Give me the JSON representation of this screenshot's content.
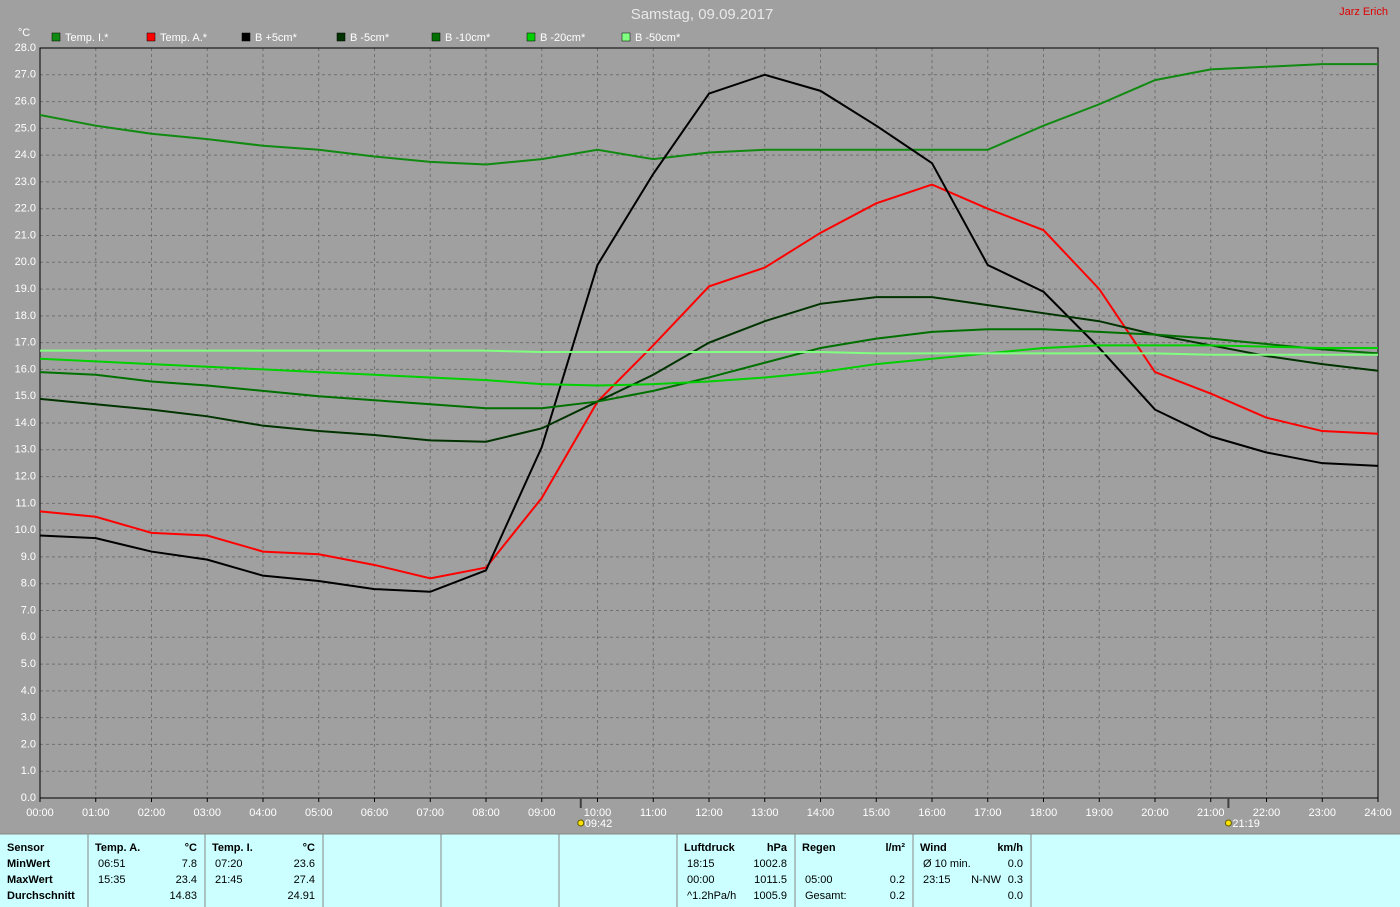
{
  "chart_data": {
    "type": "line",
    "title": "Samstag, 09.09.2017",
    "author": "Jarz Erich",
    "y_unit": "°C",
    "x": [
      0,
      1,
      2,
      3,
      4,
      5,
      6,
      7,
      8,
      9,
      10,
      11,
      12,
      13,
      14,
      15,
      16,
      17,
      18,
      19,
      20,
      21,
      22,
      23,
      24
    ],
    "xlim": [
      0,
      24
    ],
    "xticks": [
      {
        "value": 0,
        "label": "00:00"
      },
      {
        "value": 1,
        "label": "01:00"
      },
      {
        "value": 2,
        "label": "02:00"
      },
      {
        "value": 3,
        "label": "03:00"
      },
      {
        "value": 4,
        "label": "04:00"
      },
      {
        "value": 5,
        "label": "05:00"
      },
      {
        "value": 6,
        "label": "06:00"
      },
      {
        "value": 7,
        "label": "07:00"
      },
      {
        "value": 8,
        "label": "08:00"
      },
      {
        "value": 9,
        "label": "09:00"
      },
      {
        "value": 10,
        "label": "10:00"
      },
      {
        "value": 11,
        "label": "11:00"
      },
      {
        "value": 12,
        "label": "12:00"
      },
      {
        "value": 13,
        "label": "13:00"
      },
      {
        "value": 14,
        "label": "14:00"
      },
      {
        "value": 15,
        "label": "15:00"
      },
      {
        "value": 16,
        "label": "16:00"
      },
      {
        "value": 17,
        "label": "17:00"
      },
      {
        "value": 18,
        "label": "18:00"
      },
      {
        "value": 19,
        "label": "19:00"
      },
      {
        "value": 20,
        "label": "20:00"
      },
      {
        "value": 21,
        "label": "21:00"
      },
      {
        "value": 22,
        "label": "22:00"
      },
      {
        "value": 23,
        "label": "23:00"
      },
      {
        "value": 24,
        "label": "24:00"
      }
    ],
    "ylim": [
      0,
      28
    ],
    "yticks": [
      {
        "value": 0,
        "label": "0.0"
      },
      {
        "value": 1,
        "label": "1.0"
      },
      {
        "value": 2,
        "label": "2.0"
      },
      {
        "value": 3,
        "label": "3.0"
      },
      {
        "value": 4,
        "label": "4.0"
      },
      {
        "value": 5,
        "label": "5.0"
      },
      {
        "value": 6,
        "label": "6.0"
      },
      {
        "value": 7,
        "label": "7.0"
      },
      {
        "value": 8,
        "label": "8.0"
      },
      {
        "value": 9,
        "label": "9.0"
      },
      {
        "value": 10,
        "label": "10.0"
      },
      {
        "value": 11,
        "label": "11.0"
      },
      {
        "value": 12,
        "label": "12.0"
      },
      {
        "value": 13,
        "label": "13.0"
      },
      {
        "value": 14,
        "label": "14.0"
      },
      {
        "value": 15,
        "label": "15.0"
      },
      {
        "value": 16,
        "label": "16.0"
      },
      {
        "value": 17,
        "label": "17.0"
      },
      {
        "value": 18,
        "label": "18.0"
      },
      {
        "value": 19,
        "label": "19.0"
      },
      {
        "value": 20,
        "label": "20.0"
      },
      {
        "value": 21,
        "label": "21.0"
      },
      {
        "value": 22,
        "label": "22.0"
      },
      {
        "value": 23,
        "label": "23.0"
      },
      {
        "value": 24,
        "label": "24.0"
      },
      {
        "value": 25,
        "label": "25.0"
      },
      {
        "value": 26,
        "label": "26.0"
      },
      {
        "value": 27,
        "label": "27.0"
      },
      {
        "value": 28,
        "label": "28.0"
      }
    ],
    "grid": true,
    "series": [
      {
        "name": "Temp. I.*",
        "color": "#108a10",
        "values": [
          25.5,
          25.1,
          24.8,
          24.6,
          24.35,
          24.2,
          23.95,
          23.75,
          23.65,
          23.85,
          24.2,
          23.85,
          24.1,
          24.2,
          24.2,
          24.2,
          24.2,
          24.2,
          25.1,
          25.9,
          26.8,
          27.2,
          27.3,
          27.4,
          27.4
        ]
      },
      {
        "name": "Temp. A.*",
        "color": "#ff0000",
        "values": [
          10.7,
          10.5,
          9.9,
          9.8,
          9.2,
          9.1,
          8.7,
          8.2,
          8.6,
          11.2,
          14.8,
          16.9,
          19.1,
          19.8,
          21.1,
          22.2,
          22.9,
          22.0,
          21.2,
          19.0,
          15.9,
          15.1,
          14.2,
          13.7,
          13.6
        ]
      },
      {
        "name": "B +5cm*",
        "color": "#000000",
        "values": [
          9.8,
          9.7,
          9.2,
          8.9,
          8.3,
          8.1,
          7.8,
          7.7,
          8.5,
          13.1,
          19.9,
          23.3,
          26.3,
          27.0,
          26.4,
          25.1,
          23.7,
          19.9,
          18.9,
          16.8,
          14.5,
          13.5,
          12.9,
          12.5,
          12.4
        ]
      },
      {
        "name": "B -5cm*",
        "color": "#003300",
        "values": [
          14.9,
          14.7,
          14.5,
          14.25,
          13.9,
          13.7,
          13.55,
          13.35,
          13.3,
          13.8,
          14.8,
          15.8,
          17.0,
          17.8,
          18.45,
          18.7,
          18.7,
          18.4,
          18.1,
          17.8,
          17.3,
          16.9,
          16.5,
          16.2,
          15.95
        ]
      },
      {
        "name": "B -10cm*",
        "color": "#007000",
        "values": [
          15.9,
          15.8,
          15.55,
          15.4,
          15.2,
          15.0,
          14.85,
          14.7,
          14.55,
          14.55,
          14.8,
          15.2,
          15.7,
          16.25,
          16.8,
          17.15,
          17.4,
          17.5,
          17.5,
          17.4,
          17.3,
          17.15,
          16.95,
          16.75,
          16.6
        ]
      },
      {
        "name": "B -20cm*",
        "color": "#00d000",
        "values": [
          16.4,
          16.3,
          16.2,
          16.1,
          16.0,
          15.9,
          15.8,
          15.7,
          15.6,
          15.45,
          15.4,
          15.45,
          15.55,
          15.7,
          15.9,
          16.2,
          16.4,
          16.6,
          16.8,
          16.9,
          16.9,
          16.9,
          16.85,
          16.8,
          16.8
        ]
      },
      {
        "name": "B -50cm*",
        "color": "#80ff80",
        "values": [
          16.7,
          16.7,
          16.7,
          16.7,
          16.7,
          16.7,
          16.7,
          16.7,
          16.7,
          16.65,
          16.65,
          16.65,
          16.65,
          16.65,
          16.65,
          16.6,
          16.6,
          16.6,
          16.6,
          16.6,
          16.6,
          16.55,
          16.55,
          16.55,
          16.55
        ]
      }
    ],
    "annotations": [
      {
        "x": 9.7,
        "label": "09:42"
      },
      {
        "x": 21.3167,
        "label": "21:19"
      }
    ]
  },
  "stats": {
    "blocks": [
      {
        "header": [
          "Sensor"
        ],
        "rows": {
          "min": [
            "MinWert"
          ],
          "max": [
            "MaxWert"
          ],
          "avg": [
            "Durchschnitt"
          ]
        }
      },
      {
        "header": [
          "Temp. A.",
          "°C"
        ],
        "rows": {
          "min": [
            "06:51",
            "7.8"
          ],
          "max": [
            "15:35",
            "23.4"
          ],
          "avg": [
            "14.83"
          ]
        }
      },
      {
        "header": [
          "Temp. I.",
          "°C"
        ],
        "rows": {
          "min": [
            "07:20",
            "23.6"
          ],
          "max": [
            "21:45",
            "27.4"
          ],
          "avg": [
            "24.91"
          ]
        }
      },
      {
        "header": [
          "Luftdruck",
          "hPa"
        ],
        "rows": {
          "min": [
            "18:15",
            "1002.8"
          ],
          "max": [
            "00:00",
            "1011.5"
          ],
          "avg": [
            "^1.2hPa/h",
            "1005.9"
          ]
        }
      },
      {
        "header": [
          "Regen",
          "l/m²"
        ],
        "rows": {
          "max": [
            "05:00",
            "0.2"
          ],
          "avg": [
            "Gesamt:",
            "0.2"
          ]
        }
      },
      {
        "header": [
          "Wind",
          "km/h"
        ],
        "rows": {
          "min": [
            "Ø 10 min.",
            "0.0"
          ],
          "max": [
            "23:15",
            "N-NW",
            "0.3"
          ],
          "avg": [
            "0.0"
          ]
        }
      }
    ]
  }
}
